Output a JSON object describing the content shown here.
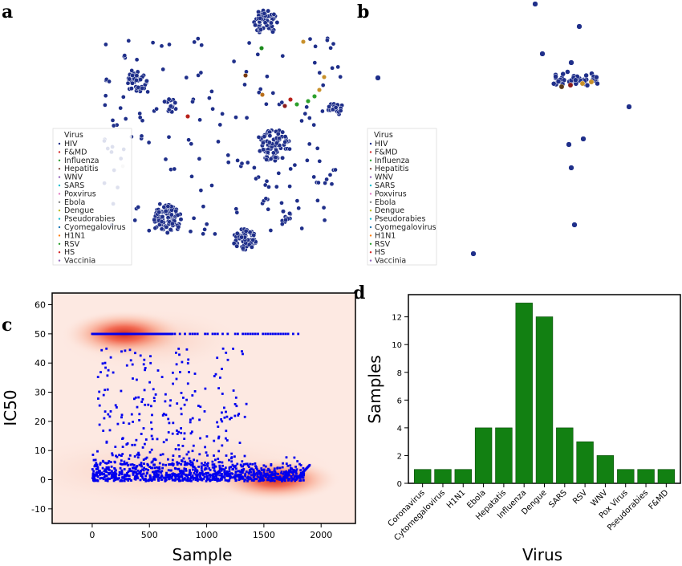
{
  "figure": {
    "panel_labels": [
      "a",
      "b",
      "c",
      "d"
    ]
  },
  "legend": {
    "title": "Virus",
    "entries": [
      "HIV",
      "F&MD",
      "Influenza",
      "Hepatitis",
      "WNV",
      "SARS",
      "Poxvirus",
      "Ebola",
      "Dengue",
      "Pseudorabies",
      "Cyomegalovirus",
      "H1N1",
      "RSV",
      "HS",
      "Vaccinia"
    ],
    "colors": [
      "#1f2f8a",
      "#d62728",
      "#2ca02c",
      "#8c564b",
      "#9467bd",
      "#17becf",
      "#e377c2",
      "#7f7f7f",
      "#bcbd22",
      "#17becf",
      "#1f77b4",
      "#ff7f0e",
      "#2ca02c",
      "#d62728",
      "#9467bd"
    ]
  },
  "colors": {
    "scatter_points": "#1f2f8a",
    "scatter_edge": "#ffffff",
    "density_base": "#fde9e2",
    "density_peak": "#d73027",
    "blue_points": "#0000ee",
    "bars": "#128012",
    "bar_edge": "#0a4d0a"
  },
  "chart_data": [
    {
      "panel": "a",
      "type": "scatter",
      "title": "",
      "xlabel": "",
      "ylabel": "",
      "axes_visible": false,
      "legend": "lower-left",
      "series_note": ""
    },
    {
      "panel": "b",
      "type": "scatter",
      "title": "",
      "xlabel": "",
      "ylabel": "",
      "axes_visible": false,
      "legend": "lower-left"
    },
    {
      "panel": "c",
      "type": "scatter",
      "title": "",
      "xlabel": "Sample",
      "ylabel": "IC50",
      "xlim": [
        -350,
        2300
      ],
      "ylim": [
        -15,
        64
      ],
      "xticks": [
        0,
        500,
        1000,
        1500,
        2000
      ],
      "yticks": [
        -10,
        0,
        10,
        20,
        30,
        40,
        50,
        60
      ],
      "density_overlay": true,
      "density_peaks": [
        {
          "x": 280,
          "y": 50,
          "strength": 1.0
        },
        {
          "x": 1600,
          "y": 0,
          "strength": 1.0
        },
        {
          "x": 700,
          "y": 5,
          "strength": 0.35
        }
      ],
      "saturated_value": 50,
      "saturated_x_range": [
        0,
        1800
      ],
      "trend_end": {
        "x": 1900,
        "y": 5
      }
    },
    {
      "panel": "d",
      "type": "bar",
      "title": "",
      "xlabel": "Virus",
      "ylabel": "Samples",
      "categories": [
        "Coronavirus",
        "Cytomegalovirus",
        "H1N1",
        "Ebola",
        "Hepatatis",
        "Influenza",
        "Dengue",
        "SARS",
        "RSV",
        "WNV",
        "Pox Virus",
        "Pseudorabies",
        "F&MD"
      ],
      "values": [
        1,
        1,
        1,
        4,
        4,
        13,
        12,
        4,
        3,
        2,
        1,
        1,
        1
      ],
      "ylim": [
        0,
        13.6
      ],
      "yticks": [
        0,
        2,
        4,
        6,
        8,
        10,
        12
      ]
    }
  ]
}
